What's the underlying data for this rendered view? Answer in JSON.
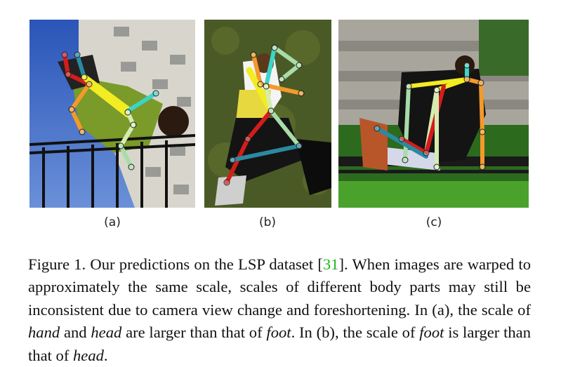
{
  "figure": {
    "panels": [
      {
        "id": "a",
        "label": "(a)"
      },
      {
        "id": "b",
        "label": "(b)"
      },
      {
        "id": "c",
        "label": "(c)"
      }
    ],
    "caption": {
      "t1": "Figure 1. Our predictions on the LSP dataset [",
      "ref": "31",
      "t2": "]. When images are warped to approximately the same scale, scales of different body parts may still be inconsistent due to camera view change and foreshortening. In (a), the scale of ",
      "e1": "hand",
      "t3": " and ",
      "e2": "head",
      "t4": " are larger than that of ",
      "e3": "foot",
      "t5": ". In (b), the scale of ",
      "e4": "foot",
      "t6": " is larger than that of ",
      "e5": "head",
      "t7": "."
    },
    "colors": {
      "reference_link": "#22b422",
      "limb_red": "#d41c1c",
      "limb_yellow": "#f2ec22",
      "limb_orange": "#f29a2a",
      "limb_cyan": "#3cd4c8",
      "limb_teal": "#2a8aa0",
      "limb_mint": "#a8dca8",
      "limb_lightgreen": "#d4ecb0"
    }
  }
}
